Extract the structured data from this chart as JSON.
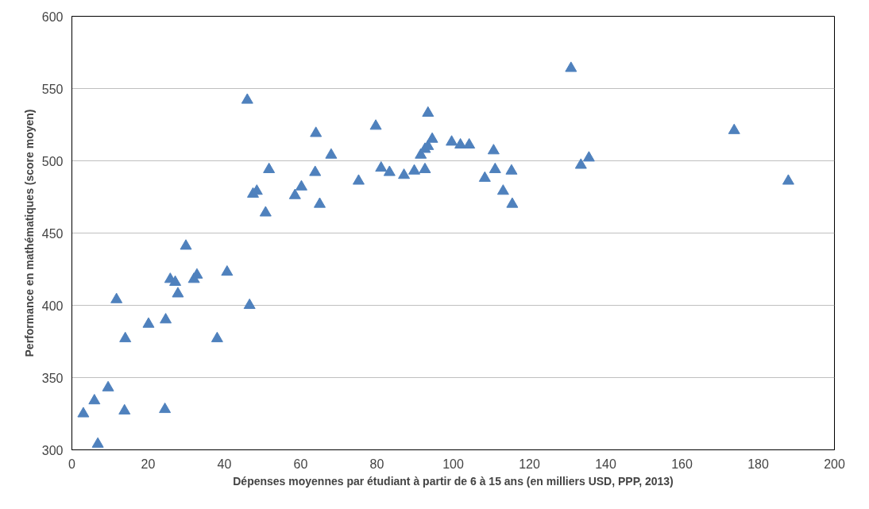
{
  "chart_data": {
    "type": "scatter",
    "xlabel": "Dépenses moyennes par étudiant à partir de 6 à 15 ans (en milliers USD, PPP, 2013)",
    "ylabel": "Performance en mathématiques (score moyen)",
    "xlim": [
      0,
      200
    ],
    "xticks": [
      0,
      20,
      40,
      60,
      80,
      100,
      120,
      140,
      160,
      180,
      200
    ],
    "ylim": [
      300,
      600
    ],
    "yticks": [
      300,
      350,
      400,
      450,
      500,
      550,
      600
    ],
    "grid": "y",
    "marker": "triangle",
    "series": [
      {
        "color": "#4f81bd",
        "x": [
          3.0,
          5.9,
          6.8,
          9.5,
          11.7,
          13.8,
          14.0,
          20.1,
          24.4,
          24.6,
          25.8,
          27.1,
          27.8,
          29.9,
          32.0,
          32.8,
          38.1,
          40.7,
          46.0,
          46.6,
          47.5,
          48.5,
          50.8,
          51.7,
          58.5,
          60.2,
          63.8,
          64.0,
          65.0,
          68.0,
          75.2,
          79.7,
          81.1,
          83.3,
          87.1,
          89.8,
          91.5,
          92.6,
          92.6,
          93.4,
          93.4,
          94.5,
          99.6,
          101.9,
          104.2,
          108.3,
          110.6,
          111.0,
          113.1,
          115.3,
          115.5,
          130.9,
          133.5,
          135.6,
          173.7,
          187.9
        ],
        "values": [
          325,
          334,
          304,
          343,
          404,
          327,
          377,
          387,
          328,
          390,
          418,
          416,
          408,
          441,
          418,
          421,
          377,
          423,
          542,
          400,
          477,
          479,
          464,
          494,
          476,
          482,
          492,
          519,
          470,
          504,
          486,
          524,
          495,
          492,
          490,
          493,
          504,
          508,
          494,
          533,
          510,
          515,
          513,
          511,
          511,
          488,
          507,
          494,
          479,
          493,
          470,
          564,
          497,
          502,
          521,
          486
        ]
      }
    ]
  }
}
